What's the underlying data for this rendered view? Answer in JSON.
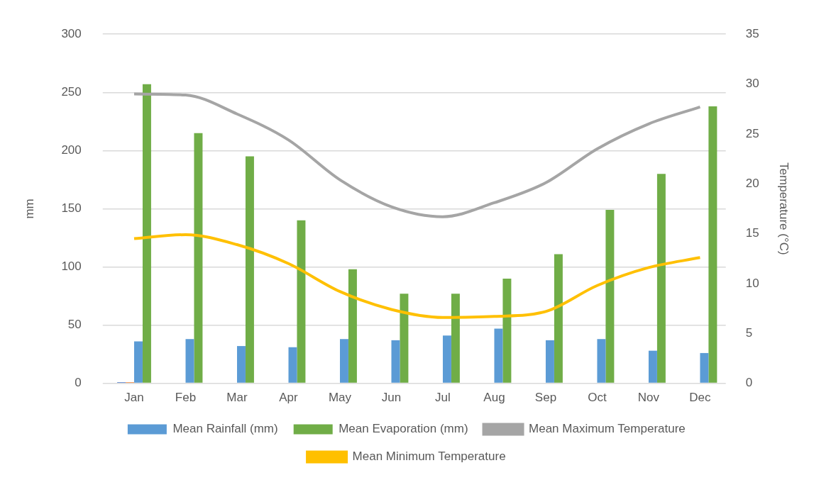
{
  "chart_data": {
    "type": "bar",
    "categories": [
      "Jan",
      "Feb",
      "Mar",
      "Apr",
      "May",
      "Jun",
      "Jul",
      "Aug",
      "Sep",
      "Oct",
      "Nov",
      "Dec"
    ],
    "ylabel": "mm",
    "y2label": "Temperature (°C)",
    "series": [
      {
        "color": "#4472c4",
        "values": [
          1,
          null,
          null,
          null,
          null,
          null,
          null,
          null,
          null,
          null,
          null,
          null
        ]
      },
      {
        "color": "#ed7d31",
        "values": [
          1,
          null,
          null,
          null,
          null,
          null,
          null,
          null,
          null,
          null,
          null,
          null
        ]
      },
      {
        "name": "Mean Rainfall (mm)",
        "color": "#5b9bd5",
        "values": [
          36,
          38,
          32,
          31,
          38,
          37,
          41,
          47,
          37,
          38,
          28,
          26
        ]
      },
      {
        "name": "Mean Evaporation (mm)",
        "color": "#70ad47",
        "values": [
          257,
          215,
          195,
          140,
          98,
          77,
          77,
          90,
          111,
          149,
          180,
          238
        ]
      },
      {
        "name": "Mean Maximum Temperature",
        "type": "line",
        "axis": "y2",
        "color": "#a5a5a5",
        "values": [
          29.0,
          28.9,
          27.0,
          24.4,
          20.4,
          17.7,
          16.7,
          18.1,
          20.1,
          23.5,
          26.0,
          27.7
        ]
      },
      {
        "name": "Mean Minimum Temperature",
        "type": "line",
        "axis": "y2",
        "color": "#ffc000",
        "values": [
          14.5,
          14.9,
          13.9,
          12.0,
          9.2,
          7.4,
          6.6,
          6.7,
          7.2,
          9.8,
          11.6,
          12.6
        ]
      }
    ],
    "ylim": [
      0,
      300
    ],
    "yticks": [
      0,
      50,
      100,
      150,
      200,
      250,
      300
    ],
    "y2lim": [
      0,
      35
    ],
    "y2ticks": [
      0,
      5,
      10,
      15,
      20,
      25,
      30,
      35
    ],
    "grid": "y",
    "legend": "bottom",
    "marker": "none"
  }
}
